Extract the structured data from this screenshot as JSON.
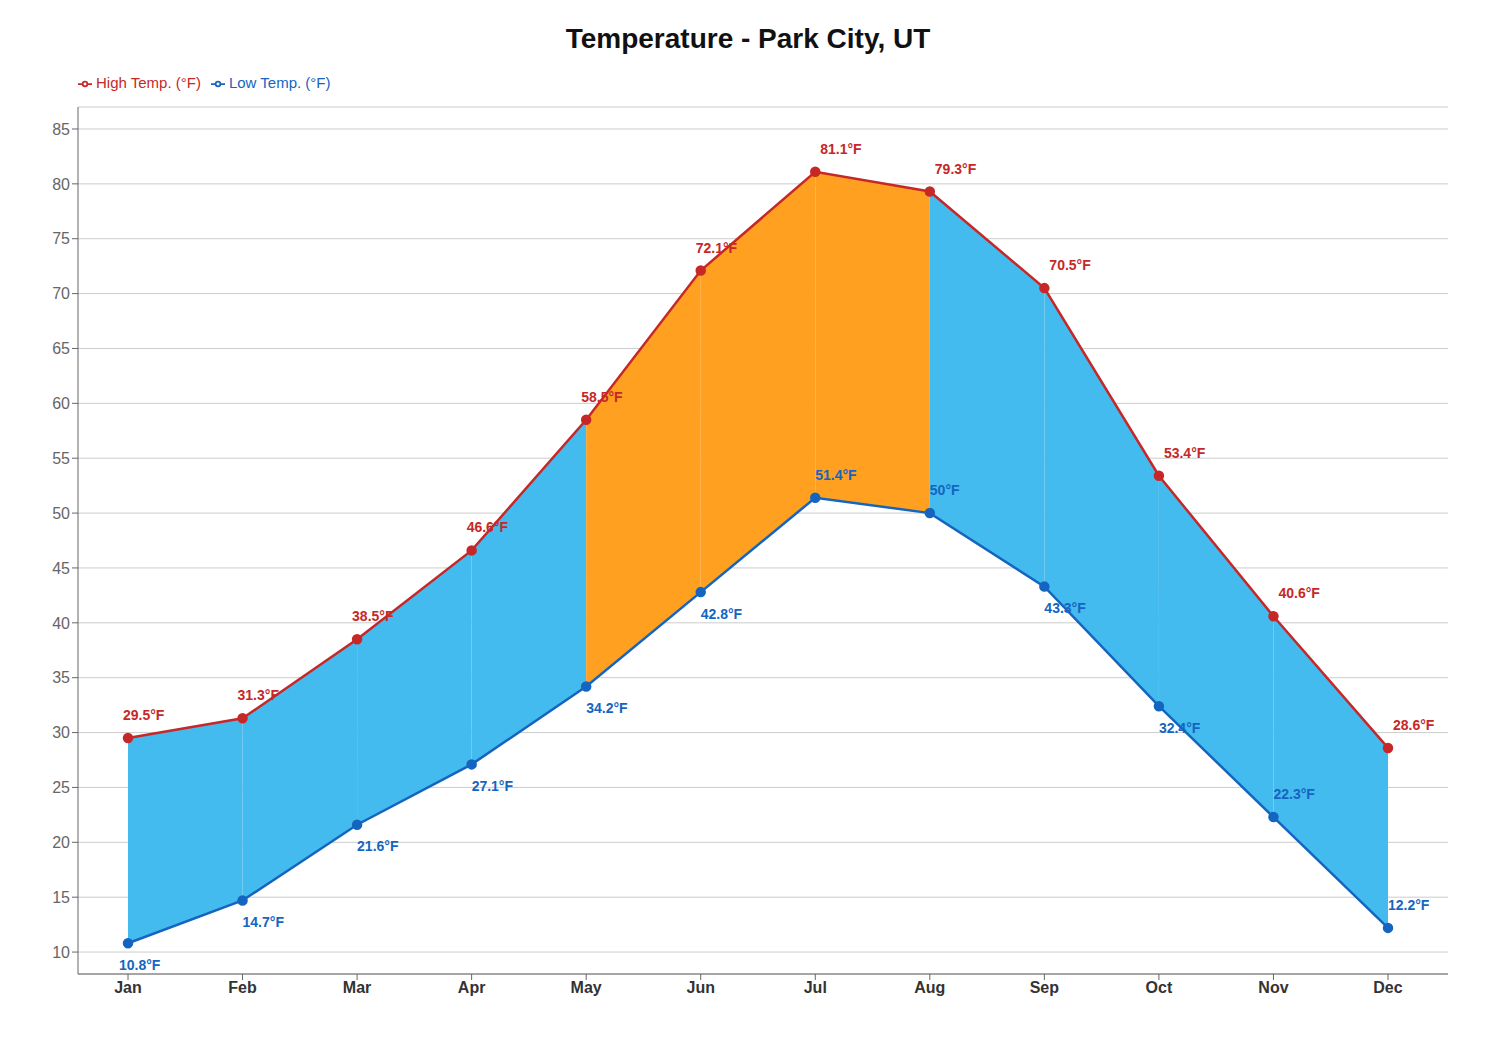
{
  "chart_data": {
    "type": "line",
    "title": "Temperature - Park City, UT",
    "categories": [
      "Jan",
      "Feb",
      "Mar",
      "Apr",
      "May",
      "Jun",
      "Jul",
      "Aug",
      "Sep",
      "Oct",
      "Nov",
      "Dec"
    ],
    "series": [
      {
        "name": "Low Temp. (°F)",
        "color": "#1565C0",
        "values": [
          10.8,
          14.7,
          21.6,
          27.1,
          34.2,
          42.8,
          51.4,
          50.0,
          43.3,
          32.4,
          22.3,
          12.2
        ],
        "value_labels": [
          "10.8°F",
          "14.7°F",
          "21.6°F",
          "27.1°F",
          "34.2°F",
          "42.8°F",
          "51.4°F",
          "50°F",
          "43.3°F",
          "32.4°F",
          "22.3°F",
          "12.2°F"
        ]
      },
      {
        "name": "High Temp. (°F)",
        "color": "#C62828",
        "values": [
          29.5,
          31.3,
          38.5,
          46.6,
          58.5,
          72.1,
          81.1,
          79.3,
          70.5,
          53.4,
          40.6,
          28.6
        ],
        "value_labels": [
          "29.5°F",
          "31.3°F",
          "38.5°F",
          "46.6°F",
          "58.5°F",
          "72.1°F",
          "81.1°F",
          "79.3°F",
          "70.5°F",
          "53.4°F",
          "40.6°F",
          "28.6°F"
        ]
      }
    ],
    "colors": [
      "#44BBEE",
      "#44BBEE",
      "#44BBEE",
      "#44BBEE",
      "#FFA020",
      "#FFA020",
      "#FFA020",
      "#44BBEE",
      "#44BBEE",
      "#44BBEE",
      "#44BBEE"
    ],
    "ylim": [
      8,
      87
    ],
    "yticks": [
      10,
      15,
      20,
      25,
      30,
      35,
      40,
      45,
      50,
      55,
      60,
      65,
      70,
      75,
      80,
      85
    ],
    "grid": true,
    "legend": "upper left",
    "data_labels": true,
    "marker": "circle"
  }
}
